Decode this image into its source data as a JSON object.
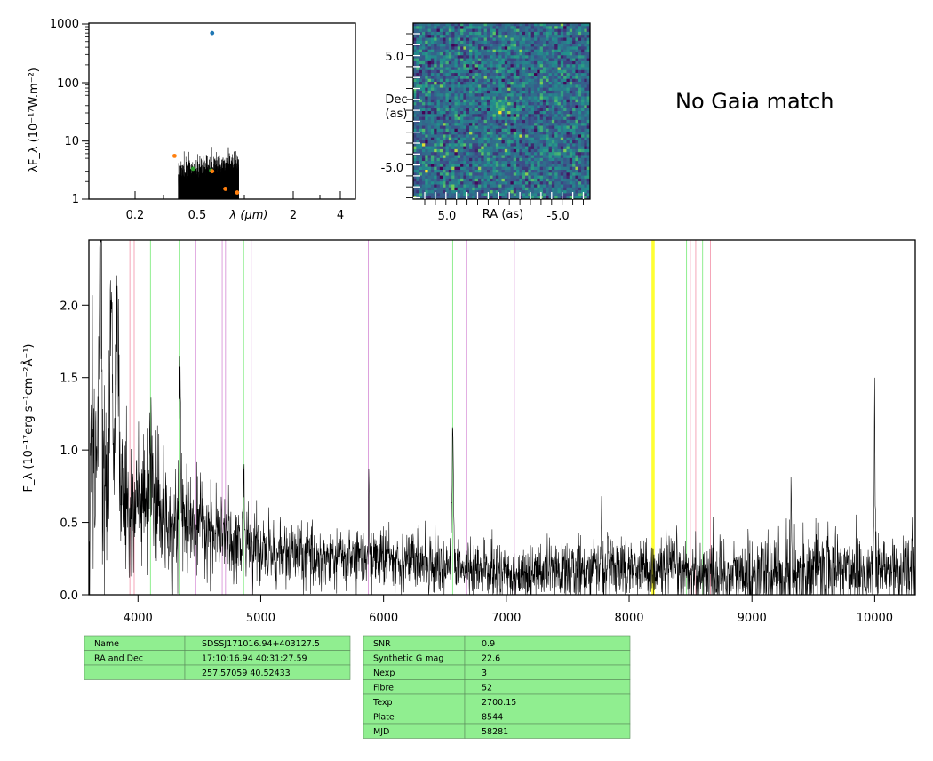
{
  "sed_panel": {
    "ylabel": "λF_λ (10⁻¹⁷W.m⁻²)",
    "xlabel": "λ (μm)",
    "y_ticks": [
      "1",
      "10",
      "100",
      "1000"
    ],
    "x_ticks": [
      "0.2",
      "0.5",
      "2",
      "4"
    ],
    "scale": "log-log",
    "points": [
      {
        "wavelength_um": 0.62,
        "flux": 700,
        "color": "#1f77b4"
      },
      {
        "wavelength_um": 0.36,
        "flux": 5.5,
        "color": "#ff7f0e"
      },
      {
        "wavelength_um": 0.47,
        "flux": 3.3,
        "color": "#2ca02c"
      },
      {
        "wavelength_um": 0.61,
        "flux": 3.1,
        "color": "#2ca02c"
      },
      {
        "wavelength_um": 0.62,
        "flux": 3.0,
        "color": "#ff7f0e"
      },
      {
        "wavelength_um": 0.75,
        "flux": 1.5,
        "color": "#ff7f0e"
      },
      {
        "wavelength_um": 0.89,
        "flux": 1.3,
        "color": "#ff7f0e"
      }
    ]
  },
  "image_panel": {
    "xlabel": "RA (as)",
    "ylabel_line1": "Dec",
    "ylabel_line2": "(as)",
    "x_ticks": [
      "5.0",
      "-5.0"
    ],
    "y_ticks": [
      "5.0",
      "-5.0"
    ]
  },
  "gaia_text": "No Gaia match",
  "chart_data": {
    "type": "line",
    "ylabel": "F_λ (10⁻¹⁷erg s⁻¹cm⁻²Å⁻¹)",
    "xlim": [
      3600,
      10330
    ],
    "ylim": [
      0,
      2.45
    ],
    "x_ticks": [
      "4000",
      "5000",
      "6000",
      "7000",
      "8000",
      "9000",
      "10000"
    ],
    "y_ticks": [
      "0.0",
      "0.5",
      "1.0",
      "1.5",
      "2.0"
    ],
    "line_markers": [
      {
        "x": 3934,
        "color": "#f4a6b8"
      },
      {
        "x": 3969,
        "color": "#f4a6b8"
      },
      {
        "x": 4102,
        "color": "#90ee90"
      },
      {
        "x": 4341,
        "color": "#90ee90"
      },
      {
        "x": 4471,
        "color": "#dda0dd"
      },
      {
        "x": 4686,
        "color": "#dda0dd"
      },
      {
        "x": 4713,
        "color": "#dda0dd"
      },
      {
        "x": 4861,
        "color": "#90ee90"
      },
      {
        "x": 4922,
        "color": "#dda0dd"
      },
      {
        "x": 5876,
        "color": "#dda0dd"
      },
      {
        "x": 6563,
        "color": "#90ee90"
      },
      {
        "x": 6678,
        "color": "#dda0dd"
      },
      {
        "x": 7065,
        "color": "#dda0dd"
      },
      {
        "x": 8190,
        "color": "#ffff33"
      },
      {
        "x": 8200,
        "color": "#ffff33"
      },
      {
        "x": 8467,
        "color": "#90ee90"
      },
      {
        "x": 8498,
        "color": "#f4a6b8"
      },
      {
        "x": 8542,
        "color": "#f4a6b8"
      },
      {
        "x": 8598,
        "color": "#90ee90"
      },
      {
        "x": 8662,
        "color": "#f4a6b8"
      }
    ],
    "features": [
      {
        "x": 3690,
        "amp": 1.8,
        "w": 15
      },
      {
        "x": 3780,
        "amp": 1.3,
        "w": 12
      },
      {
        "x": 3830,
        "amp": 1.1,
        "w": 20
      },
      {
        "x": 4102,
        "amp": 0.5,
        "w": 10
      },
      {
        "x": 4341,
        "amp": 0.9,
        "w": 9
      },
      {
        "x": 4861,
        "amp": 0.55,
        "w": 8
      },
      {
        "x": 5880,
        "amp": 0.5,
        "w": 6
      },
      {
        "x": 6563,
        "amp": 0.95,
        "w": 8
      },
      {
        "x": 7775,
        "amp": 0.45,
        "w": 4
      },
      {
        "x": 9320,
        "amp": 0.6,
        "w": 5
      },
      {
        "x": 10000,
        "amp": 0.95,
        "w": 6
      }
    ]
  },
  "table_left": {
    "rows": [
      [
        "Name",
        "SDSSJ171016.94+403127.5"
      ],
      [
        "RA and Dec",
        "17:10:16.94    40:31:27.59"
      ],
      [
        "",
        "257.57059    40.52433"
      ]
    ],
    "bg": "#90ee90"
  },
  "table_right": {
    "rows": [
      [
        "SNR",
        "0.9"
      ],
      [
        "Synthetic G mag",
        "22.6"
      ],
      [
        "Nexp",
        "3"
      ],
      [
        "Fibre",
        "52"
      ],
      [
        "Texp",
        "2700.15"
      ],
      [
        "Plate",
        "8544"
      ],
      [
        "MJD",
        "58281"
      ]
    ],
    "bg": "#90ee90"
  }
}
